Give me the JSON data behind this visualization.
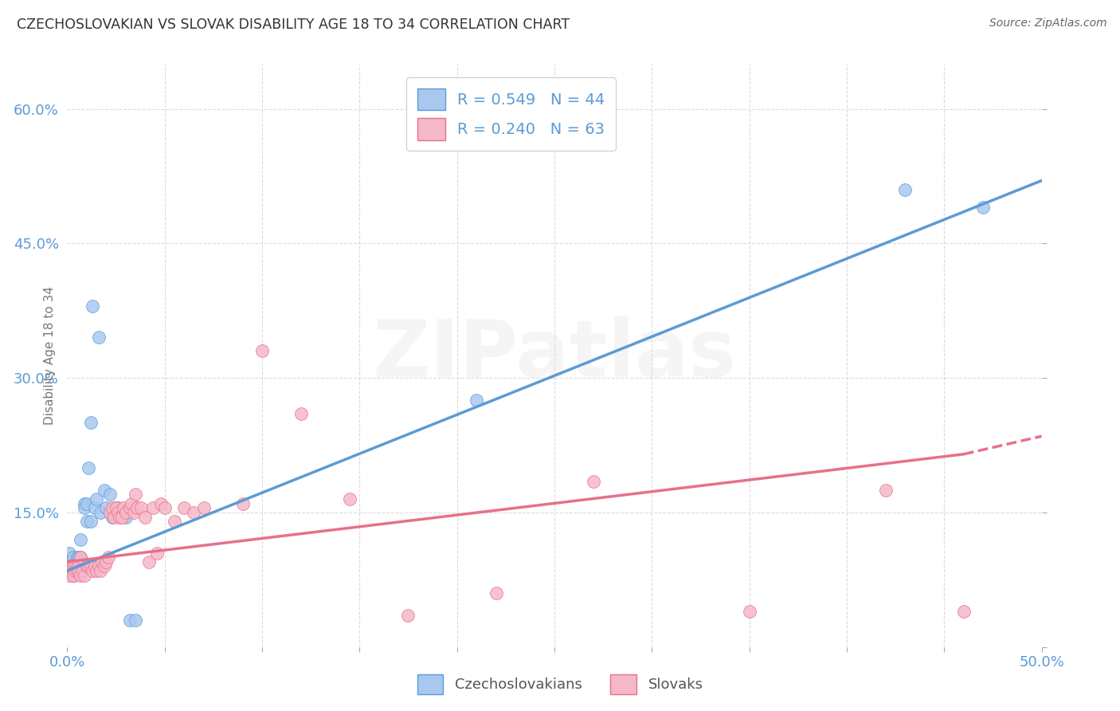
{
  "title": "CZECHOSLOVAKIAN VS SLOVAK DISABILITY AGE 18 TO 34 CORRELATION CHART",
  "source": "Source: ZipAtlas.com",
  "ylabel": "Disability Age 18 to 34",
  "xlim": [
    0.0,
    0.5
  ],
  "ylim": [
    0.0,
    0.65
  ],
  "xticks": [
    0.0,
    0.05,
    0.1,
    0.15,
    0.2,
    0.25,
    0.3,
    0.35,
    0.4,
    0.45,
    0.5
  ],
  "ytick_positions": [
    0.0,
    0.15,
    0.3,
    0.45,
    0.6
  ],
  "yticklabels": [
    "",
    "15.0%",
    "30.0%",
    "45.0%",
    "60.0%"
  ],
  "R_czech": 0.549,
  "N_czech": 44,
  "R_slovak": 0.24,
  "N_slovak": 63,
  "czech_color": "#A8C8F0",
  "slovak_color": "#F5B8C8",
  "czech_line_color": "#5B9BD5",
  "slovak_line_color": "#E8708A",
  "background_color": "#FFFFFF",
  "grid_color": "#CCCCCC",
  "watermark_text": "ZIPatlas",
  "czech_line_x": [
    0.0,
    0.5
  ],
  "czech_line_y": [
    0.085,
    0.52
  ],
  "slovak_line_x0": 0.0,
  "slovak_line_x1": 0.46,
  "slovak_line_x_dash": 0.46,
  "slovak_line_x_end": 0.5,
  "slovak_line_y0": 0.095,
  "slovak_line_y1": 0.215,
  "slovak_line_y_end": 0.235,
  "czech_points_x": [
    0.001,
    0.001,
    0.002,
    0.002,
    0.003,
    0.003,
    0.003,
    0.004,
    0.004,
    0.005,
    0.005,
    0.005,
    0.006,
    0.006,
    0.006,
    0.007,
    0.007,
    0.008,
    0.008,
    0.009,
    0.009,
    0.01,
    0.01,
    0.011,
    0.012,
    0.012,
    0.013,
    0.014,
    0.015,
    0.016,
    0.017,
    0.019,
    0.02,
    0.022,
    0.023,
    0.025,
    0.026,
    0.028,
    0.03,
    0.032,
    0.035,
    0.21,
    0.43,
    0.47
  ],
  "czech_points_y": [
    0.105,
    0.095,
    0.095,
    0.09,
    0.1,
    0.085,
    0.08,
    0.09,
    0.085,
    0.09,
    0.1,
    0.095,
    0.09,
    0.1,
    0.085,
    0.1,
    0.12,
    0.095,
    0.085,
    0.16,
    0.155,
    0.16,
    0.14,
    0.2,
    0.25,
    0.14,
    0.38,
    0.155,
    0.165,
    0.345,
    0.15,
    0.175,
    0.155,
    0.17,
    0.145,
    0.155,
    0.155,
    0.15,
    0.145,
    0.03,
    0.03,
    0.275,
    0.51,
    0.49
  ],
  "slovak_points_x": [
    0.001,
    0.001,
    0.002,
    0.002,
    0.003,
    0.003,
    0.004,
    0.004,
    0.005,
    0.005,
    0.006,
    0.006,
    0.007,
    0.007,
    0.008,
    0.009,
    0.01,
    0.011,
    0.012,
    0.013,
    0.014,
    0.015,
    0.016,
    0.017,
    0.018,
    0.019,
    0.02,
    0.021,
    0.022,
    0.023,
    0.024,
    0.025,
    0.026,
    0.027,
    0.028,
    0.029,
    0.03,
    0.032,
    0.033,
    0.034,
    0.035,
    0.036,
    0.038,
    0.04,
    0.042,
    0.044,
    0.046,
    0.048,
    0.05,
    0.055,
    0.06,
    0.065,
    0.07,
    0.09,
    0.1,
    0.12,
    0.145,
    0.175,
    0.22,
    0.27,
    0.35,
    0.42,
    0.46
  ],
  "slovak_points_y": [
    0.09,
    0.08,
    0.09,
    0.085,
    0.09,
    0.08,
    0.09,
    0.085,
    0.085,
    0.09,
    0.09,
    0.085,
    0.1,
    0.08,
    0.085,
    0.08,
    0.09,
    0.09,
    0.09,
    0.085,
    0.09,
    0.085,
    0.09,
    0.085,
    0.095,
    0.09,
    0.095,
    0.1,
    0.15,
    0.155,
    0.145,
    0.155,
    0.15,
    0.145,
    0.145,
    0.155,
    0.15,
    0.155,
    0.16,
    0.15,
    0.17,
    0.155,
    0.155,
    0.145,
    0.095,
    0.155,
    0.105,
    0.16,
    0.155,
    0.14,
    0.155,
    0.15,
    0.155,
    0.16,
    0.33,
    0.26,
    0.165,
    0.035,
    0.06,
    0.185,
    0.04,
    0.175,
    0.04
  ]
}
